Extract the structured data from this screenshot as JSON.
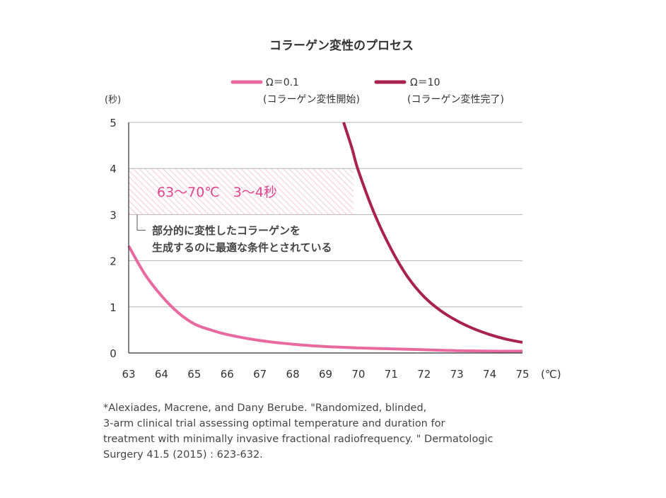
{
  "chart_data": {
    "type": "line",
    "title": "コラーゲン変性のプロセス",
    "ylabel": "(秒)",
    "xunit": "(℃)",
    "xlim": [
      63,
      75
    ],
    "ylim": [
      0,
      5
    ],
    "xticks": [
      63,
      64,
      65,
      66,
      67,
      68,
      69,
      70,
      71,
      72,
      73,
      74,
      75
    ],
    "yticks": [
      0,
      1,
      2,
      3,
      4,
      5
    ],
    "grid": true,
    "legend_position": "top",
    "series": [
      {
        "name": "Ω＝0.1",
        "sublabel": "(コラーゲン変性開始)",
        "color": "#e8699f",
        "x": [
          63,
          63.5,
          64,
          64.5,
          65,
          65.5,
          66,
          67,
          68,
          69,
          70,
          71,
          72,
          73,
          74,
          75
        ],
        "y": [
          2.32,
          1.7,
          1.24,
          0.88,
          0.63,
          0.5,
          0.4,
          0.27,
          0.19,
          0.14,
          0.11,
          0.09,
          0.07,
          0.05,
          0.04,
          0.04
        ]
      },
      {
        "name": "Ω＝10",
        "sublabel": "(コラーゲン変性完了)",
        "color": "#a8224f",
        "x": [
          69.55,
          69.8,
          70,
          70.5,
          71,
          71.5,
          72,
          72.5,
          73,
          73.5,
          74,
          74.5,
          75
        ],
        "y": [
          5.0,
          4.45,
          3.95,
          3.0,
          2.25,
          1.65,
          1.22,
          0.92,
          0.7,
          0.53,
          0.4,
          0.3,
          0.23
        ]
      }
    ],
    "annotations": {
      "range": {
        "x": [
          63,
          69.85
        ],
        "y": [
          3,
          4
        ],
        "label": "63〜70℃　3〜4秒",
        "color": "#e0458c"
      },
      "callout_lines": [
        "部分的に変性したコラーゲンを",
        "生成するのに最適な条件とされている"
      ]
    }
  },
  "citation": "*Alexiades, Macrene, and Dany Berube. \"Randomized, blinded,\n 3-arm clinical trial assessing optimal temperature and duration for\n treatment with minimally invasive fractional radiofrequency. \" Dermatologic\n Surgery 41.5 (2015) : 623-632."
}
